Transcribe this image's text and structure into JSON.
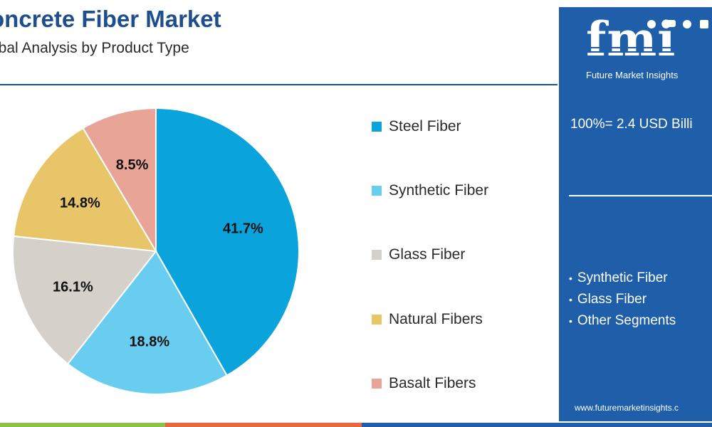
{
  "header": {
    "title": "oncrete Fiber Market",
    "subtitle": "obal Analysis by Product Type"
  },
  "chart_data": {
    "type": "pie",
    "title": "",
    "slices": [
      {
        "label": "Steel Fiber",
        "value": 41.7,
        "display": "41.7%",
        "color": "#0aa3dc"
      },
      {
        "label": "Synthetic Fiber",
        "value": 18.8,
        "display": "18.8%",
        "color": "#69cdf0"
      },
      {
        "label": "Glass Fiber",
        "value": 16.1,
        "display": "16.1%",
        "color": "#d6d0cb"
      },
      {
        "label": "Natural Fibers",
        "value": 14.8,
        "display": "14.8%",
        "color": "#e9c56a"
      },
      {
        "label": "Basalt Fibers",
        "value": 8.5,
        "display": "8.5%",
        "color": "#e8a597"
      }
    ],
    "legend_position": "right"
  },
  "panel": {
    "logo_text": "fmi",
    "logo_subtitle": "Future Market Insights",
    "total_text": "100%= 2.4 USD Billi",
    "bullets": [
      "Synthetic Fiber",
      "Glass Fiber",
      "Other Segments"
    ],
    "website": "www.futuremarketinsights.c",
    "background_color": "#1f5ea8"
  },
  "footer": {
    "stripe_colors": [
      "#8bc34a",
      "#e8693f",
      "#1f5ea8"
    ]
  }
}
